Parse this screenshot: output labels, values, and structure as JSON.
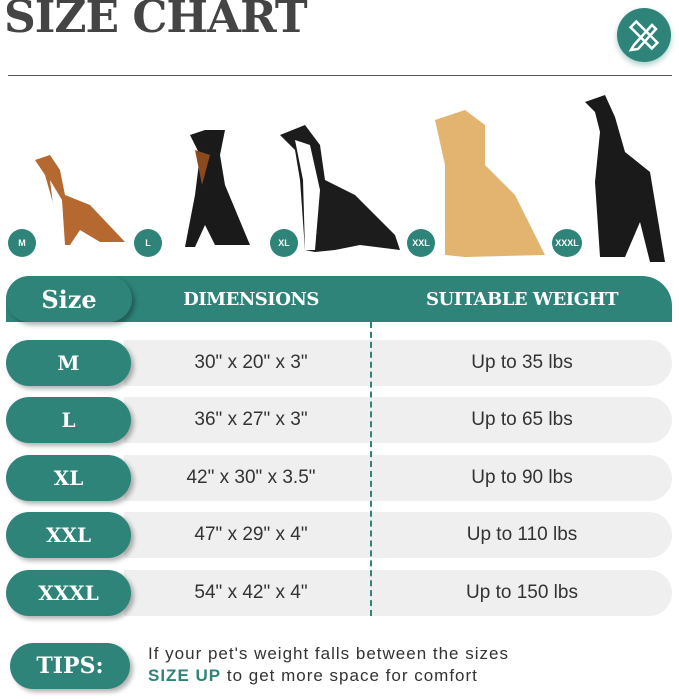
{
  "title": "SIZE CHART",
  "icon": "ruler-pencil-icon",
  "accent_color": "#2e8479",
  "dogs": [
    "M",
    "L",
    "XL",
    "XXL",
    "XXXL"
  ],
  "header": {
    "size": "Size",
    "dimensions": "DIMENSIONS",
    "weight": "SUITABLE WEIGHT"
  },
  "rows": [
    {
      "size": "M",
      "dimensions": "30\" x 20\" x 3\"",
      "weight": "Up to 35 lbs"
    },
    {
      "size": "L",
      "dimensions": "36\" x 27\" x 3\"",
      "weight": "Up to 65 lbs"
    },
    {
      "size": "XL",
      "dimensions": "42\" x 30\" x 3.5\"",
      "weight": "Up to 90 lbs"
    },
    {
      "size": "XXL",
      "dimensions": "47\" x 29\" x 4\"",
      "weight": "Up to 110 lbs"
    },
    {
      "size": "XXXL",
      "dimensions": "54\" x 42\" x 4\"",
      "weight": "Up to 150 lbs"
    }
  ],
  "tips": {
    "label": "TIPS:",
    "line1": "If your pet's weight falls between the sizes",
    "emphasis": "SIZE UP",
    "line2_rest": " to get more space for comfort"
  }
}
